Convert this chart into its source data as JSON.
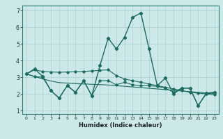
{
  "xlabel": "Humidex (Indice chaleur)",
  "background_color": "#cce8e8",
  "grid_color": "#aad0d0",
  "line_color": "#1a6b60",
  "xlim": [
    -0.5,
    23.5
  ],
  "ylim": [
    0.8,
    7.3
  ],
  "xticks": [
    0,
    1,
    2,
    3,
    4,
    5,
    6,
    7,
    8,
    9,
    10,
    11,
    12,
    13,
    14,
    15,
    16,
    17,
    18,
    19,
    20,
    21,
    22,
    23
  ],
  "yticks": [
    1,
    2,
    3,
    4,
    5,
    6,
    7
  ],
  "series": {
    "main_curve": [
      3.2,
      3.5,
      3.05,
      2.2,
      1.75,
      2.5,
      2.1,
      2.8,
      1.9,
      3.7,
      5.35,
      4.7,
      5.4,
      6.6,
      6.85,
      4.7,
      2.5,
      2.95,
      2.0,
      2.35,
      2.35,
      1.3,
      2.05,
      2.1
    ],
    "upper_flat": [
      3.2,
      3.45,
      3.35,
      3.32,
      3.3,
      3.32,
      3.33,
      3.35,
      3.38,
      3.42,
      3.45,
      3.1,
      2.9,
      2.8,
      2.7,
      2.6,
      2.5,
      2.4,
      2.3,
      2.2,
      2.1,
      2.05,
      2.0,
      1.95
    ],
    "lower_flat": [
      3.2,
      3.05,
      2.9,
      2.78,
      2.68,
      2.65,
      2.62,
      2.6,
      2.58,
      2.56,
      2.54,
      2.5,
      2.46,
      2.42,
      2.38,
      2.34,
      2.3,
      2.26,
      2.22,
      2.18,
      2.14,
      2.1,
      2.06,
      2.02
    ],
    "zigzag": [
      3.2,
      3.05,
      3.0,
      2.2,
      1.75,
      2.5,
      2.1,
      2.8,
      1.9,
      2.8,
      2.8,
      2.55,
      2.7,
      2.55,
      2.5,
      2.5,
      2.45,
      2.35,
      2.1,
      2.35,
      2.35,
      1.3,
      2.0,
      2.1
    ]
  }
}
